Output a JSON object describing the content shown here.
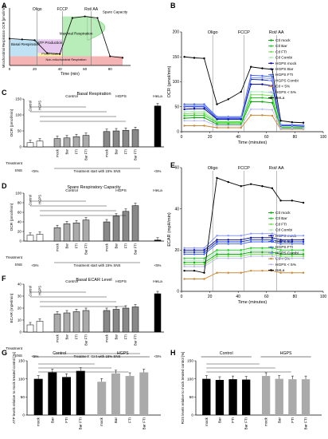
{
  "chart_data": [
    {
      "panel": "A",
      "type": "line",
      "title": "",
      "xlabel": "Time (min)",
      "ylabel": "Mitochondrial Respiration OCR [pmol/min]",
      "injections": [
        "Oligo",
        "FCCP",
        "Rot/ AA"
      ],
      "x": [
        0,
        10,
        20,
        30,
        40,
        50,
        60,
        70,
        80,
        90
      ],
      "values": [
        35,
        34,
        33,
        16,
        15,
        62,
        64,
        62,
        12,
        10
      ],
      "regions": [
        "Basal Respiration",
        "ATP Production",
        "Proton Leak",
        "Maximal Respiration",
        "Non-mitochondrial Respiration",
        "Spare Capacity"
      ],
      "xticks": [
        "0",
        "20",
        "40",
        "60",
        "80"
      ]
    },
    {
      "panel": "B",
      "type": "line",
      "xlabel": "Time (minutes)",
      "ylabel": "OCR (pmol/min)",
      "injections": [
        "Oligo",
        "FCCP",
        "Rot/ AA"
      ],
      "xlim": [
        0,
        100
      ],
      "ylim": [
        0,
        200
      ],
      "xticks": [
        "0",
        "20",
        "40",
        "60",
        "80",
        "100"
      ],
      "yticks": [
        "0",
        "50",
        "100",
        "150",
        "200"
      ],
      "x": [
        2,
        9,
        16,
        25,
        33,
        42,
        49,
        57,
        64,
        70,
        78,
        86
      ],
      "series": [
        {
          "name": "Ctl mock",
          "color": "#00aa00",
          "values": [
            27,
            28,
            28,
            15,
            15,
            15,
            60,
            60,
            58,
            8,
            8,
            7
          ]
        },
        {
          "name": "Ctl Bar",
          "color": "#22cc22",
          "values": [
            32,
            33,
            33,
            18,
            18,
            18,
            68,
            68,
            66,
            9,
            9,
            8
          ]
        },
        {
          "name": "Ctl FTI",
          "color": "#77dd55",
          "values": [
            36,
            37,
            37,
            20,
            20,
            20,
            74,
            74,
            72,
            10,
            10,
            9
          ]
        },
        {
          "name": "Ctl Combi",
          "color": "#aaeebb",
          "values": [
            40,
            41,
            41,
            22,
            22,
            22,
            80,
            80,
            78,
            10,
            10,
            10
          ]
        },
        {
          "name": "HGPS mock",
          "color": "#000099",
          "values": [
            45,
            46,
            46,
            25,
            25,
            25,
            95,
            95,
            92,
            12,
            12,
            11
          ]
        },
        {
          "name": "HGPS Bar",
          "color": "#1133cc",
          "values": [
            50,
            50,
            50,
            27,
            27,
            27,
            105,
            104,
            102,
            13,
            13,
            12
          ]
        },
        {
          "name": "HGPS FTI",
          "color": "#4466ee",
          "values": [
            55,
            55,
            55,
            30,
            30,
            30,
            113,
            112,
            110,
            14,
            14,
            13
          ]
        },
        {
          "name": "HGPS Combi",
          "color": "#8899ff",
          "values": [
            52,
            52,
            52,
            29,
            29,
            29,
            108,
            108,
            106,
            13,
            13,
            12
          ]
        },
        {
          "name": "Ctl < 5%",
          "color": "#cc8833",
          "values": [
            12,
            12,
            12,
            8,
            8,
            8,
            33,
            33,
            32,
            5,
            5,
            5
          ]
        },
        {
          "name": "HGPS < 5%",
          "color": "#bbbbee",
          "values": [
            22,
            22,
            22,
            12,
            12,
            12,
            45,
            45,
            44,
            6,
            6,
            6
          ]
        },
        {
          "name": "HeLa",
          "color": "#000000",
          "values": [
            150,
            148,
            147,
            55,
            65,
            80,
            130,
            127,
            125,
            22,
            19,
            18
          ]
        }
      ]
    },
    {
      "panel": "C",
      "type": "bar",
      "title": "Basal Respiration",
      "ylabel": "OCR (pmol/min)",
      "ylim": [
        0,
        150
      ],
      "yticks": [
        "0",
        "50",
        "100",
        "150"
      ],
      "group_labels": [
        "Control",
        "HGPS",
        "HeLa"
      ],
      "categories": [
        "Control",
        "HGPS",
        "mock",
        "Bar",
        "FTI",
        "Bar FTI",
        "mock",
        "Bar",
        "FTI",
        "Bar FTI",
        ""
      ],
      "values": [
        13,
        18,
        26,
        28,
        32,
        36,
        48,
        50,
        52,
        54,
        128
      ],
      "treatment_label": "Treatment",
      "sns_label": "SNS",
      "treatment_text": "Treatment start with 15% SNS",
      "sns_values": [
        "<5%",
        "<5%"
      ]
    },
    {
      "panel": "D",
      "type": "bar",
      "title": "Spare Respiratory Capacity",
      "ylabel": "OCR (pmol/min)",
      "ylim": [
        0,
        100
      ],
      "yticks": [
        "0",
        "20",
        "40",
        "60",
        "80",
        "100"
      ],
      "group_labels": [
        "Control",
        "HGPS",
        "HeLa"
      ],
      "categories": [
        "Control",
        "HGPS",
        "mock",
        "Bar",
        "FTI",
        "Bar FTI",
        "mock",
        "Bar",
        "FTI",
        "Bar FTI",
        ""
      ],
      "values": [
        12,
        14,
        28,
        36,
        38,
        44,
        40,
        52,
        62,
        74,
        2
      ],
      "treatment_label": "Treatment",
      "sns_label": "SNS",
      "treatment_text": "Treatment start with 15% SNS",
      "sns_values": [
        "<5%",
        "<5%"
      ]
    },
    {
      "panel": "E",
      "type": "line",
      "xlabel": "Time (minutes)",
      "ylabel": "ECAR (mpH/min)",
      "injections": [
        "Oligo",
        "FCCP",
        "Rot/ AA"
      ],
      "xlim": [
        0,
        100
      ],
      "ylim": [
        0,
        60
      ],
      "xticks": [
        "0",
        "20",
        "40",
        "60",
        "80",
        "100"
      ],
      "yticks": [
        "0",
        "20",
        "40",
        "60"
      ],
      "x": [
        2,
        9,
        16,
        25,
        33,
        42,
        49,
        57,
        64,
        70,
        78,
        86
      ],
      "series": [
        {
          "name": "Ctl mock",
          "color": "#00aa00",
          "values": [
            14,
            14,
            14,
            18,
            18,
            18,
            19,
            19,
            19,
            18,
            18,
            18
          ]
        },
        {
          "name": "Ctl Bar",
          "color": "#22cc22",
          "values": [
            16,
            16,
            16,
            20,
            20,
            20,
            21,
            21,
            21,
            20,
            20,
            20
          ]
        },
        {
          "name": "Ctl FTI",
          "color": "#77dd55",
          "values": [
            13,
            13,
            13,
            17,
            17,
            17,
            18,
            18,
            18,
            17,
            17,
            17
          ]
        },
        {
          "name": "Ctl Combi",
          "color": "#aaeebb",
          "values": [
            15,
            15,
            15,
            19,
            19,
            19,
            20,
            20,
            20,
            19,
            19,
            19
          ]
        },
        {
          "name": "HGPS mock",
          "color": "#000099",
          "values": [
            20,
            20,
            20,
            25,
            25,
            25,
            26,
            26,
            26,
            25,
            25,
            25
          ]
        },
        {
          "name": "HGPS Bar",
          "color": "#1133cc",
          "values": [
            19,
            19,
            19,
            24,
            24,
            24,
            25,
            25,
            25,
            24,
            24,
            24
          ]
        },
        {
          "name": "HGPS FTI",
          "color": "#4466ee",
          "values": [
            18,
            18,
            18,
            23,
            23,
            23,
            24,
            24,
            24,
            23,
            23,
            23
          ]
        },
        {
          "name": "HGPS Combi",
          "color": "#8899ff",
          "values": [
            21,
            21,
            21,
            27,
            27,
            27,
            28,
            28,
            28,
            27,
            27,
            27
          ]
        },
        {
          "name": "Ctl < 5%",
          "color": "#cc8833",
          "values": [
            6,
            6,
            6,
            9,
            9,
            9,
            10,
            10,
            10,
            9,
            9,
            9
          ]
        },
        {
          "name": "HGPS < 5%",
          "color": "#bbbbee",
          "values": [
            12,
            12,
            12,
            16,
            16,
            16,
            17,
            17,
            17,
            16,
            16,
            16
          ]
        },
        {
          "name": "HeLa",
          "color": "#000000",
          "values": [
            10,
            10,
            9,
            55,
            53,
            51,
            52,
            51,
            50,
            44,
            44,
            43
          ]
        }
      ]
    },
    {
      "panel": "F",
      "type": "bar",
      "title": "Basal ECAR Level",
      "ylabel": "ECAR (mpH/min)",
      "ylim": [
        0,
        40
      ],
      "yticks": [
        "0",
        "10",
        "20",
        "30",
        "40"
      ],
      "group_labels": [
        "Control",
        "HGPS",
        "HeLa"
      ],
      "categories": [
        "Control",
        "HGPS",
        "mock",
        "Bar",
        "FTI",
        "Bar FTI",
        "mock",
        "Bar",
        "FTI",
        "Bar FTI",
        ""
      ],
      "values": [
        6,
        9,
        15,
        16,
        17,
        18,
        18,
        19,
        20,
        21,
        32
      ],
      "treatment_label": "Treatment",
      "sns_label": "SNS",
      "treatment_text": "Treatment start with 15% SNS",
      "sns_values": [
        "<5%",
        "<5%"
      ]
    },
    {
      "panel": "G",
      "type": "bar",
      "ylabel": "ATP levels relative to mock treated control [%]",
      "ylim": [
        0,
        150
      ],
      "yticks": [
        "0",
        "50",
        "100",
        "150"
      ],
      "group_labels": [
        "Control",
        "HGPS"
      ],
      "categories": [
        "mock",
        "Bar",
        "FTI",
        "Bar FTI",
        "mock",
        "Bar",
        "FTI",
        "Bar FTI"
      ],
      "values": [
        100,
        118,
        105,
        122,
        92,
        115,
        108,
        118
      ]
    },
    {
      "panel": "H",
      "type": "bar",
      "ylabel": "ROS levels relative to mock treated control [%]",
      "ylim": [
        0,
        150
      ],
      "yticks": [
        "0",
        "50",
        "100",
        "150"
      ],
      "group_labels": [
        "Control",
        "HGPS"
      ],
      "categories": [
        "mock",
        "Bar",
        "FTI",
        "Bar FTI",
        "mock",
        "Bar",
        "FTI",
        "Bar FTI"
      ],
      "values": [
        100,
        97,
        99,
        98,
        108,
        100,
        99,
        99
      ]
    }
  ]
}
